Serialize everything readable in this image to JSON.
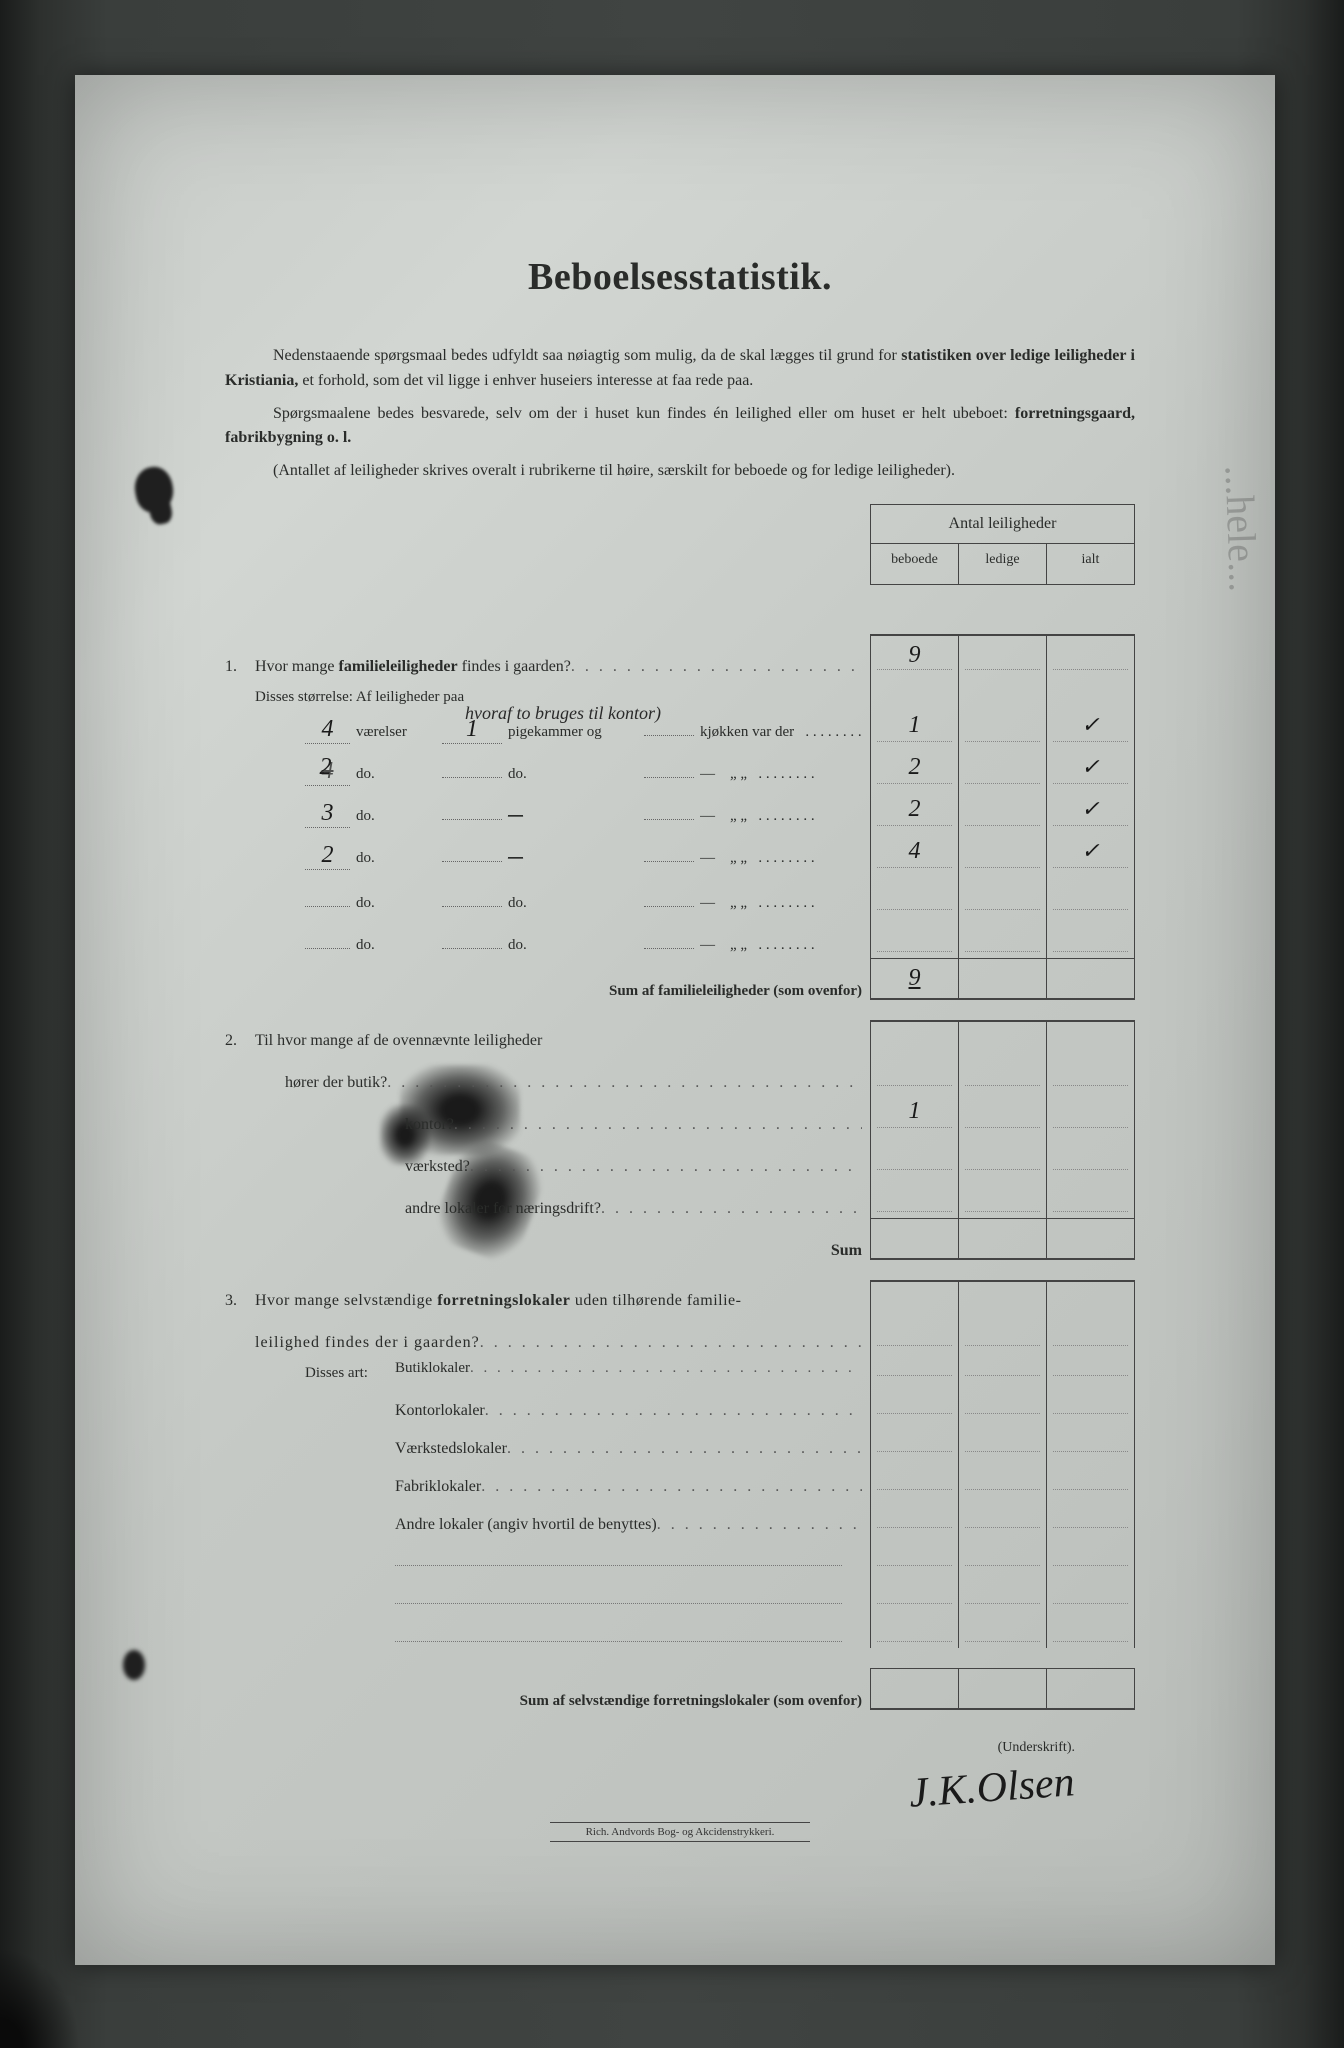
{
  "title": "Beboelsesstatistik.",
  "intro": {
    "p1a": "Nedenstaaende spørgsmaal bedes udfyldt saa nøiagtig som mulig, da de skal lægges til grund for ",
    "p1b": "statistiken over ledige leiligheder i Kristiania,",
    "p1c": " et forhold, som det vil ligge i enhver huseiers interesse at faa rede paa.",
    "p2a": "Spørgsmaalene bedes besvarede, selv om der i huset kun findes én leilighed eller om huset er helt ubeboet: ",
    "p2b": "forretningsgaard, fabrikbygning o. l.",
    "p3": "(Antallet af leiligheder skrives overalt i rubrikerne til høire, særskilt for beboede og for ledige leiligheder)."
  },
  "tableHeader": {
    "title": "Antal leiligheder",
    "col1": "beboede",
    "col2": "ledige",
    "col3": "ialt"
  },
  "q1": {
    "num": "1.",
    "text": "Hvor mange familieleiligheder findes i gaarden?",
    "answer_beboede": "9",
    "sub_label": "Disses størrelse:   Af leiligheder paa",
    "annotation": "hvoraf to bruges til kontor)",
    "rows": [
      {
        "v": "4",
        "p": "1",
        "beb": "1",
        "ialt": "✓"
      },
      {
        "v": "2",
        "p": "",
        "beb": "2",
        "ialt": "✓",
        "strike_v": true
      },
      {
        "v": "3",
        "p": "",
        "beb": "2",
        "ialt": "✓",
        "dash": true
      },
      {
        "v": "2",
        "p": "",
        "beb": "4",
        "ialt": "✓",
        "dash": true
      },
      {
        "v": "",
        "p": "",
        "beb": "",
        "ialt": ""
      },
      {
        "v": "",
        "p": "",
        "beb": "",
        "ialt": ""
      }
    ],
    "row_labels": {
      "vaerelser": "værelser",
      "do": "do.",
      "pigekammer": "pigekammer og",
      "kjokken": "kjøkken var der",
      "dash": "—",
      "quote": "„    „"
    },
    "sum_label": "Sum af familieleiligheder (som ovenfor)",
    "sum_value": "9"
  },
  "q2": {
    "num": "2.",
    "text": "Til hvor mange af de ovennævnte leiligheder",
    "lines": [
      {
        "label": "hører der butik?",
        "val": ""
      },
      {
        "label": "kontor?",
        "val": "1"
      },
      {
        "label": "værksted?",
        "val": ""
      },
      {
        "label": "andre lokaler for næringsdrift?",
        "val": ""
      }
    ],
    "sum_label": "Sum"
  },
  "q3": {
    "num": "3.",
    "text_a": "Hvor mange selvstændige ",
    "text_b": "forretningslokaler",
    "text_c": " uden tilhørende familie-",
    "text_d": "leilighed findes der i gaarden?",
    "sub_label": "Disses art:",
    "lines": [
      "Butiklokaler",
      "Kontorlokaler",
      "Værkstedslokaler",
      "Fabriklokaler",
      "Andre lokaler (angiv hvortil de benyttes)"
    ],
    "sum_label": "Sum af selvstændige forretningslokaler (som ovenfor)"
  },
  "signature": {
    "label": "(Underskrift).",
    "value": "J.K.Olsen"
  },
  "printer": "Rich. Andvords Bog- og Akcidenstrykkeri."
}
